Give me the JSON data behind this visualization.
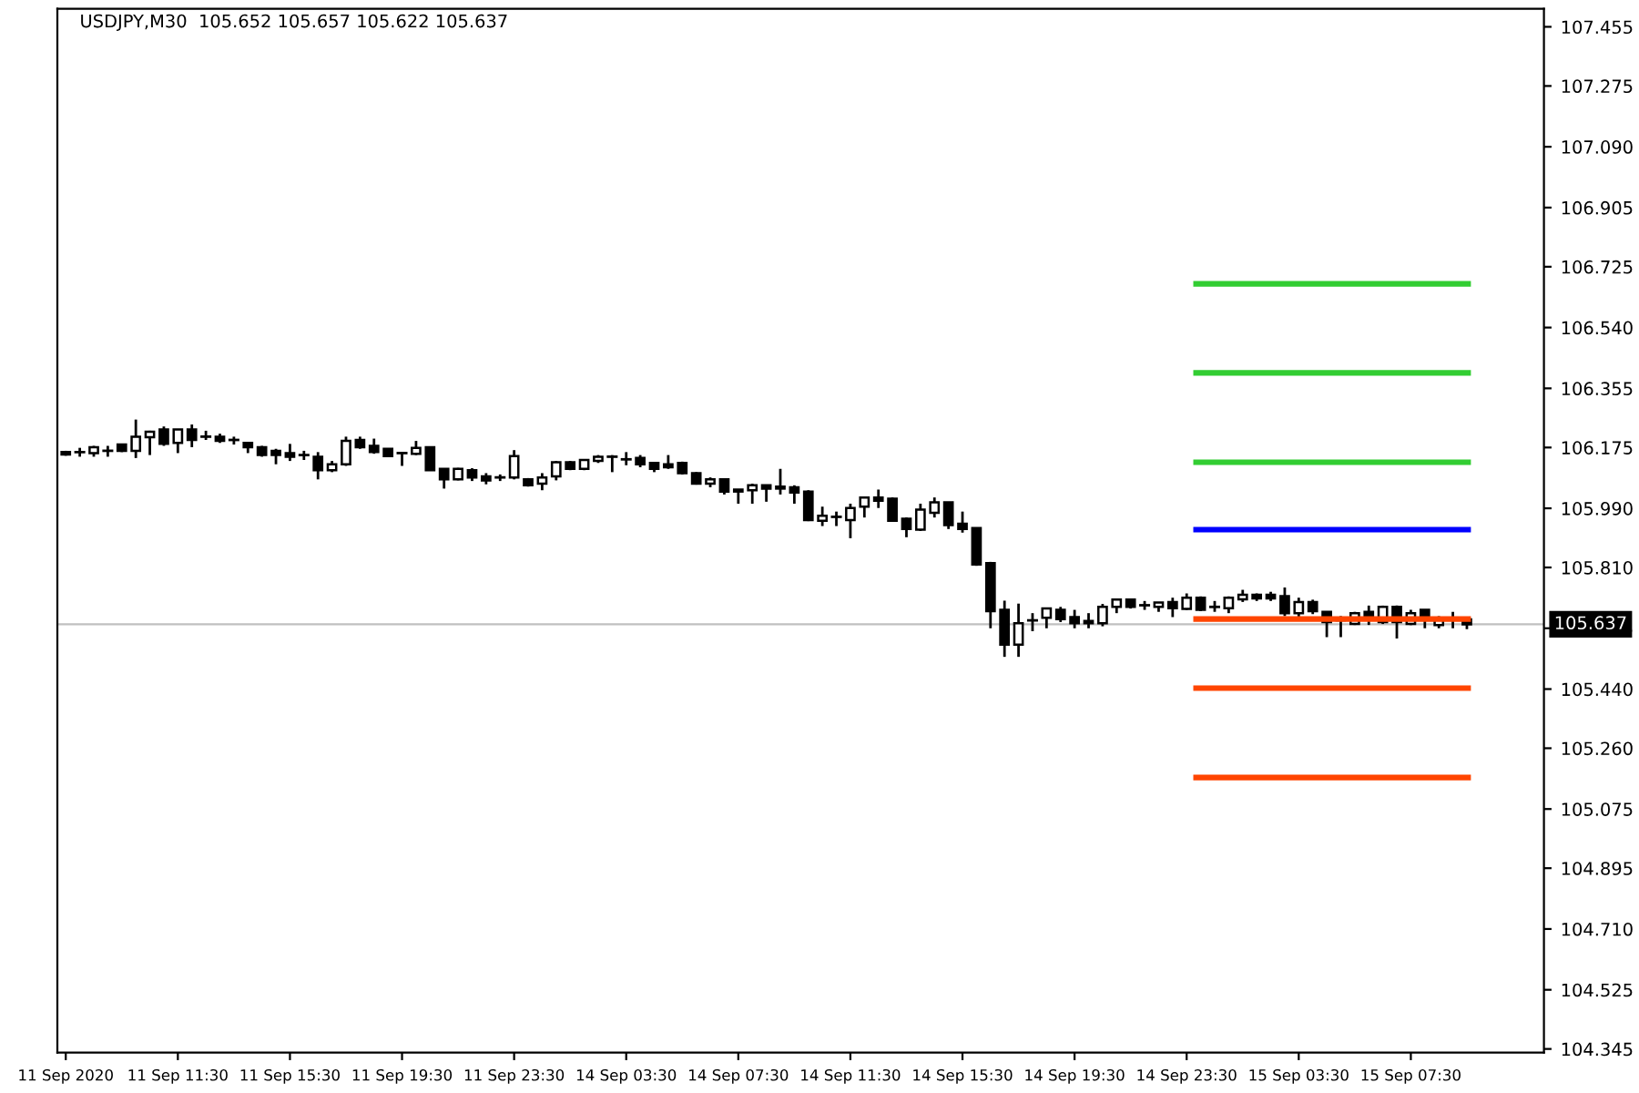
{
  "chart_data": {
    "type": "candlestick",
    "title": "USDJPY,M30  105.652 105.657 105.622 105.637",
    "categories": [
      "11 Sep 2020",
      null,
      null,
      null,
      null,
      null,
      null,
      null,
      "11 Sep 11:30",
      null,
      null,
      null,
      null,
      null,
      null,
      null,
      "11 Sep 15:30",
      null,
      null,
      null,
      null,
      null,
      null,
      null,
      "11 Sep 19:30",
      null,
      null,
      null,
      null,
      null,
      null,
      null,
      "11 Sep 23:30",
      null,
      null,
      null,
      null,
      null,
      null,
      null,
      "14 Sep 03:30",
      null,
      null,
      null,
      null,
      null,
      null,
      null,
      "14 Sep 07:30",
      null,
      null,
      null,
      null,
      null,
      null,
      null,
      "14 Sep 11:30",
      null,
      null,
      null,
      null,
      null,
      null,
      null,
      "14 Sep 15:30",
      null,
      null,
      null,
      null,
      null,
      null,
      null,
      "14 Sep 19:30",
      null,
      null,
      null,
      null,
      null,
      null,
      null,
      "14 Sep 23:30",
      null,
      null,
      null,
      null,
      null,
      null,
      null,
      "15 Sep 03:30",
      null,
      null,
      null,
      null,
      null,
      null,
      null,
      "15 Sep 07:30",
      null,
      null,
      null,
      null
    ],
    "ohlc": [
      [
        106.161,
        106.165,
        106.15,
        106.154
      ],
      [
        106.161,
        106.174,
        106.147,
        106.161
      ],
      [
        106.158,
        106.18,
        106.147,
        106.176
      ],
      [
        106.165,
        106.18,
        106.147,
        106.165
      ],
      [
        106.184,
        106.187,
        106.161,
        106.165
      ],
      [
        106.165,
        106.26,
        106.143,
        106.208
      ],
      [
        106.206,
        106.226,
        106.152,
        106.223
      ],
      [
        106.23,
        106.239,
        106.18,
        106.186
      ],
      [
        106.189,
        106.23,
        106.158,
        106.23
      ],
      [
        106.23,
        106.245,
        106.176,
        106.198
      ],
      [
        106.208,
        106.226,
        106.198,
        106.208
      ],
      [
        106.208,
        106.217,
        106.189,
        106.195
      ],
      [
        106.198,
        106.208,
        106.184,
        106.198
      ],
      [
        106.189,
        106.189,
        106.158,
        106.176
      ],
      [
        106.176,
        106.18,
        106.147,
        106.152
      ],
      [
        106.165,
        106.171,
        106.124,
        106.152
      ],
      [
        106.158,
        106.186,
        106.134,
        106.147
      ],
      [
        106.152,
        106.165,
        106.137,
        106.152
      ],
      [
        106.147,
        106.161,
        106.078,
        106.106
      ],
      [
        106.106,
        106.134,
        106.1,
        106.124
      ],
      [
        106.124,
        106.208,
        106.119,
        106.195
      ],
      [
        106.198,
        106.208,
        106.171,
        106.176
      ],
      [
        106.18,
        106.202,
        106.156,
        106.161
      ],
      [
        106.171,
        106.173,
        106.147,
        106.149
      ],
      [
        106.158,
        106.161,
        106.119,
        106.158
      ],
      [
        106.156,
        106.195,
        106.152,
        106.174
      ],
      [
        106.176,
        106.178,
        106.104,
        106.106
      ],
      [
        106.11,
        106.11,
        106.05,
        106.078
      ],
      [
        106.078,
        106.113,
        106.075,
        106.11
      ],
      [
        106.106,
        106.112,
        106.073,
        106.084
      ],
      [
        106.087,
        106.097,
        106.063,
        106.075
      ],
      [
        106.084,
        106.093,
        106.073,
        106.084
      ],
      [
        106.084,
        106.167,
        106.078,
        106.149
      ],
      [
        106.078,
        106.082,
        106.056,
        106.06
      ],
      [
        106.065,
        106.097,
        106.045,
        106.084
      ],
      [
        106.087,
        106.134,
        106.075,
        106.13
      ],
      [
        106.13,
        106.134,
        106.106,
        106.11
      ],
      [
        106.11,
        106.137,
        106.106,
        106.137
      ],
      [
        106.134,
        106.152,
        106.128,
        106.147
      ],
      [
        106.147,
        106.152,
        106.1,
        106.147
      ],
      [
        106.139,
        106.161,
        106.121,
        106.139
      ],
      [
        106.143,
        106.152,
        106.115,
        106.124
      ],
      [
        106.128,
        106.128,
        106.1,
        106.11
      ],
      [
        106.124,
        106.152,
        106.11,
        106.115
      ],
      [
        106.128,
        106.132,
        106.093,
        106.097
      ],
      [
        106.097,
        106.1,
        106.062,
        106.065
      ],
      [
        106.065,
        106.084,
        106.054,
        106.078
      ],
      [
        106.078,
        106.078,
        106.032,
        106.041
      ],
      [
        106.047,
        106.047,
        106.004,
        106.041
      ],
      [
        106.045,
        106.065,
        106.004,
        106.06
      ],
      [
        106.06,
        106.06,
        106.01,
        106.05
      ],
      [
        106.056,
        106.11,
        106.032,
        106.05
      ],
      [
        106.054,
        106.06,
        106.004,
        106.038
      ],
      [
        106.041,
        106.045,
        105.951,
        105.954
      ],
      [
        105.952,
        105.995,
        105.936,
        105.967
      ],
      [
        105.964,
        105.98,
        105.936,
        105.964
      ],
      [
        105.954,
        106.004,
        105.899,
        105.991
      ],
      [
        105.995,
        106.023,
        105.962,
        106.023
      ],
      [
        106.023,
        106.047,
        105.991,
        106.013
      ],
      [
        106.019,
        106.023,
        105.949,
        105.952
      ],
      [
        105.958,
        105.962,
        105.902,
        105.927
      ],
      [
        105.925,
        106.004,
        105.921,
        105.986
      ],
      [
        105.976,
        106.023,
        105.962,
        106.008
      ],
      [
        106.008,
        106.008,
        105.927,
        105.939
      ],
      [
        105.943,
        105.98,
        105.916,
        105.927
      ],
      [
        105.93,
        105.932,
        105.815,
        105.819
      ],
      [
        105.823,
        105.827,
        105.625,
        105.677
      ],
      [
        105.681,
        105.709,
        105.538,
        105.575
      ],
      [
        105.575,
        105.7,
        105.538,
        105.64
      ],
      [
        105.649,
        105.671,
        105.616,
        105.649
      ],
      [
        105.657,
        105.685,
        105.625,
        105.685
      ],
      [
        105.681,
        105.69,
        105.644,
        105.653
      ],
      [
        105.659,
        105.681,
        105.625,
        105.64
      ],
      [
        105.647,
        105.671,
        105.625,
        105.64
      ],
      [
        105.64,
        105.699,
        105.631,
        105.69
      ],
      [
        105.69,
        105.712,
        105.671,
        105.712
      ],
      [
        105.712,
        105.712,
        105.685,
        105.69
      ],
      [
        105.695,
        105.708,
        105.681,
        105.695
      ],
      [
        105.69,
        105.703,
        105.675,
        105.703
      ],
      [
        105.705,
        105.718,
        105.659,
        105.686
      ],
      [
        105.684,
        105.731,
        105.681,
        105.718
      ],
      [
        105.718,
        105.722,
        105.677,
        105.681
      ],
      [
        105.69,
        105.708,
        105.675,
        105.69
      ],
      [
        105.686,
        105.722,
        105.671,
        105.718
      ],
      [
        105.713,
        105.742,
        105.705,
        105.727
      ],
      [
        105.727,
        105.731,
        105.708,
        105.716
      ],
      [
        105.727,
        105.736,
        105.708,
        105.716
      ],
      [
        105.723,
        105.749,
        105.662,
        105.671
      ],
      [
        105.671,
        105.718,
        105.657,
        105.705
      ],
      [
        105.705,
        105.712,
        105.668,
        105.677
      ],
      [
        105.675,
        105.675,
        105.598,
        105.644
      ],
      [
        105.657,
        105.662,
        105.598,
        105.649
      ],
      [
        105.638,
        105.675,
        105.635,
        105.671
      ],
      [
        105.675,
        105.694,
        105.635,
        105.653
      ],
      [
        105.644,
        105.694,
        105.638,
        105.69
      ],
      [
        105.69,
        105.694,
        105.594,
        105.644
      ],
      [
        105.638,
        105.681,
        105.635,
        105.671
      ],
      [
        105.681,
        105.681,
        105.625,
        105.653
      ],
      [
        105.635,
        105.662,
        105.625,
        105.653
      ],
      [
        105.653,
        105.675,
        105.625,
        105.653
      ],
      [
        105.652,
        105.657,
        105.622,
        105.637
      ]
    ],
    "color": "#000000",
    "colors": [
      "#000000",
      "#000000",
      "#ffffff",
      "#000000",
      "#000000",
      "#ffffff",
      "#ffffff",
      "#000000",
      "#ffffff",
      "#000000",
      "#000000",
      "#000000",
      "#000000",
      "#000000",
      "#000000",
      "#000000",
      "#000000",
      "#000000",
      "#000000",
      "#ffffff",
      "#ffffff",
      "#000000",
      "#000000",
      "#000000",
      "#000000",
      "#ffffff",
      "#000000",
      "#000000",
      "#ffffff",
      "#000000",
      "#000000",
      "#000000",
      "#ffffff",
      "#000000",
      "#ffffff",
      "#ffffff",
      "#000000",
      "#ffffff",
      "#ffffff",
      "#000000",
      "#000000",
      "#000000",
      "#000000",
      "#000000",
      "#000000",
      "#000000",
      "#ffffff",
      "#000000",
      "#000000",
      "#ffffff",
      "#000000",
      "#000000",
      "#000000",
      "#000000",
      "#ffffff",
      "#000000",
      "#ffffff",
      "#ffffff",
      "#000000",
      "#000000",
      "#000000",
      "#ffffff",
      "#ffffff",
      "#000000",
      "#000000",
      "#000000",
      "#000000",
      "#000000",
      "#ffffff",
      "#000000",
      "#ffffff",
      "#000000",
      "#000000",
      "#000000",
      "#ffffff",
      "#ffffff",
      "#000000",
      "#000000",
      "#ffffff",
      "#000000",
      "#ffffff",
      "#000000",
      "#000000",
      "#ffffff",
      "#ffffff",
      "#000000",
      "#000000",
      "#000000",
      "#ffffff",
      "#000000",
      "#000000",
      "#000000",
      "#ffffff",
      "#000000",
      "#ffffff",
      "#000000",
      "#ffffff",
      "#000000",
      "#ffffff",
      "#000000",
      "#000000"
    ],
    "ylim": [
      104.334,
      107.51
    ],
    "yticks": [
      107.455,
      107.275,
      {
        "value": 107.09,
        "label": "107.090"
      },
      106.905,
      106.725,
      {
        "value": 106.54,
        "label": "106.540"
      },
      106.355,
      106.175,
      {
        "value": 105.99,
        "label": "105.990"
      },
      {
        "value": 105.81,
        "label": "105.810"
      },
      105.625,
      {
        "value": 105.44,
        "label": "105.440"
      },
      {
        "value": 105.26,
        "label": "105.260"
      },
      105.075,
      104.895,
      {
        "value": 104.71,
        "label": "104.710"
      },
      104.525,
      104.345
    ],
    "ref_lines": [
      {
        "axis": "y",
        "value": 105.637,
        "label": "105.637",
        "color": "#c0c0c0",
        "line_style": "solid"
      },
      {
        "axis": "y",
        "value": 106.673,
        "color": "#32cd32"
      },
      {
        "axis": "y",
        "value": 106.402,
        "color": "#32cd32"
      },
      {
        "axis": "y",
        "value": 106.13,
        "color": "#32cd32"
      },
      {
        "axis": "y",
        "value": 105.925,
        "color": "#0000ff"
      },
      {
        "axis": "y",
        "value": 105.653,
        "color": "#ff4500"
      },
      {
        "axis": "y",
        "value": 105.443,
        "color": "#ff4500"
      },
      {
        "axis": "y",
        "value": 105.171,
        "color": "#ff4500"
      }
    ],
    "grid": false,
    "legend": false
  }
}
